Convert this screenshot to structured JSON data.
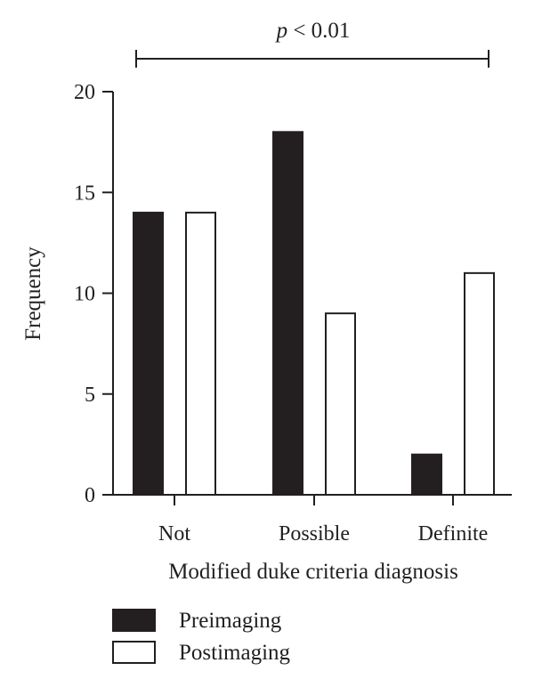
{
  "chart_data": {
    "type": "bar",
    "categories": [
      "Not",
      "Possible",
      "Definite"
    ],
    "series": [
      {
        "name": "Preimaging",
        "values": [
          14,
          18,
          2
        ],
        "color": "#231f20",
        "fill": "#231f20"
      },
      {
        "name": "Postimaging",
        "values": [
          14,
          9,
          11
        ],
        "color": "#231f20",
        "fill": "#ffffff"
      }
    ],
    "title": "",
    "xlabel": "Modified duke criteria diagnosis",
    "ylabel": "Frequency",
    "ylim": [
      0,
      20
    ],
    "yticks": [
      0,
      5,
      10,
      15,
      20
    ],
    "grid": false,
    "legend_position": "bottom-left",
    "annotation": {
      "italic": "p",
      "text": " < 0.01",
      "spans_categories": [
        "Not",
        "Definite"
      ]
    }
  }
}
